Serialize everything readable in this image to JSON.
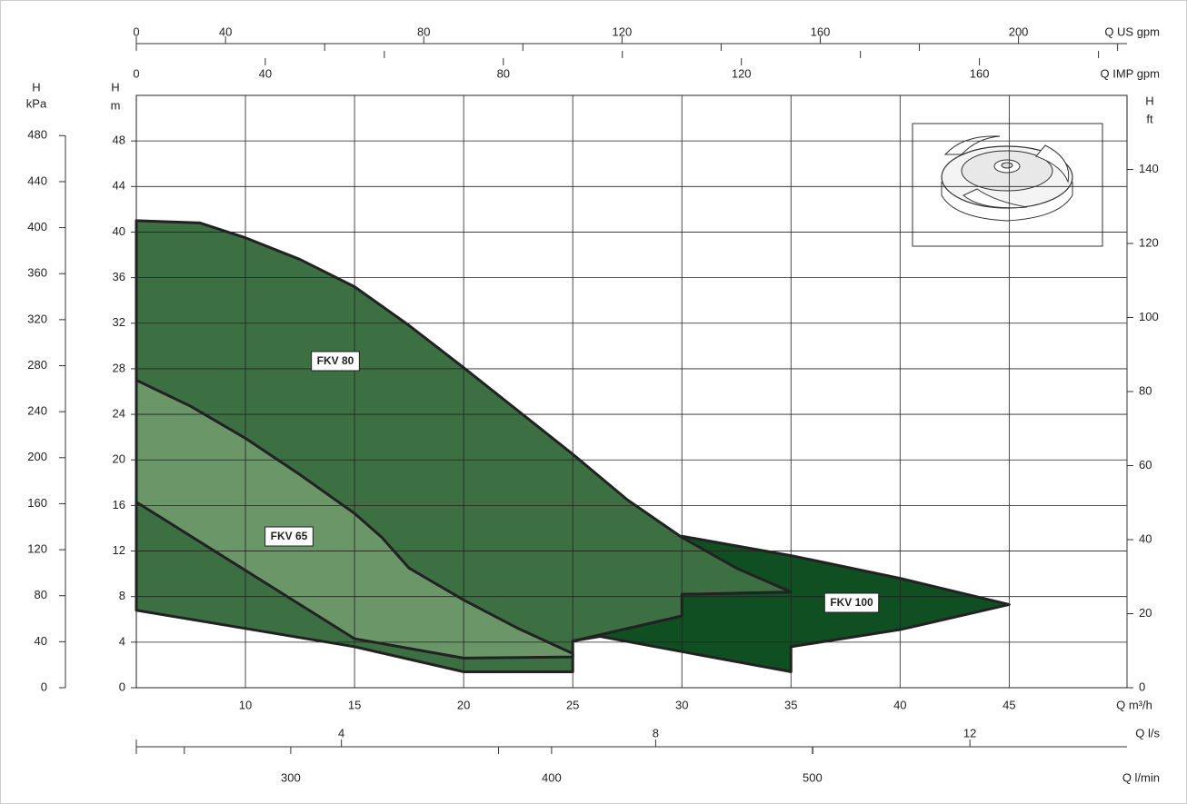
{
  "chart_data": {
    "type": "area",
    "xlabel": "Q m³/h",
    "xlim": [
      5,
      50.4
    ],
    "xticks": [
      10,
      15,
      20,
      25,
      30,
      35,
      40,
      45
    ],
    "ylabel": [
      "H",
      "m"
    ],
    "ylim": [
      0,
      52
    ],
    "yticks": [
      0,
      4,
      8,
      12,
      16,
      20,
      24,
      28,
      32,
      36,
      40,
      44,
      48
    ],
    "grid": true,
    "y_kpa": {
      "label": [
        "H",
        "kPa"
      ],
      "lim": [
        0,
        515
      ],
      "ticks": [
        0,
        40,
        80,
        120,
        160,
        200,
        240,
        280,
        320,
        360,
        400,
        440,
        480
      ]
    },
    "y_ft": {
      "label": [
        "H",
        "ft"
      ],
      "lim": [
        0,
        160
      ],
      "ticks": [
        0,
        20,
        40,
        60,
        80,
        100,
        120,
        140
      ]
    },
    "x_us_gpm": {
      "label": "Q US gpm",
      "start_label": "0",
      "lim": [
        22.0,
        221.9
      ],
      "ticks": [
        40,
        80,
        120,
        160,
        200
      ],
      "minor_ticks": [
        60,
        100,
        140,
        180,
        220
      ]
    },
    "x_imp_gpm": {
      "label": "Q IMP gpm",
      "start_label": "0",
      "lim": [
        18.33,
        184.8
      ],
      "ticks": [
        40,
        80,
        120,
        160
      ],
      "minor_ticks": [
        60,
        100,
        140,
        180
      ]
    },
    "x_ls": {
      "label": "Q l/s",
      "lim": [
        1.389,
        14.0
      ],
      "ticks": [
        4,
        8,
        12
      ],
      "minor_ticks": [
        2,
        6,
        10
      ]
    },
    "x_lmin": {
      "label": "Q l/min",
      "lim": [
        240.8,
        620.6
      ],
      "ticks": [
        300,
        400,
        500
      ]
    },
    "series": [
      {
        "name": "FKV 100",
        "color": "#0f4f22",
        "x": [
          30,
          35,
          40,
          45,
          40,
          35,
          35,
          26.25,
          25,
          30
        ],
        "y": [
          13.3,
          11.6,
          9.6,
          7.3,
          5.1,
          3.6,
          1.4,
          4.5,
          4.1,
          6.3
        ]
      },
      {
        "name": "FKV 80",
        "color": "#3c7042",
        "x": [
          5,
          7.92,
          10,
          12.5,
          15,
          17.5,
          20,
          22.5,
          25,
          27.5,
          30,
          32.5,
          35,
          30,
          30,
          25,
          25,
          20,
          15,
          10,
          5
        ],
        "y": [
          41.0,
          40.8,
          39.5,
          37.6,
          35.2,
          31.8,
          28.1,
          24.3,
          20.5,
          16.5,
          13.2,
          10.5,
          8.4,
          8.2,
          6.3,
          4.1,
          1.4,
          1.4,
          3.6,
          5.2,
          6.8
        ]
      },
      {
        "name": "FKV 65",
        "color": "#6b9668",
        "x": [
          5,
          7.5,
          10,
          12.5,
          15,
          16.25,
          17.5,
          20,
          22.5,
          25,
          25,
          20,
          15,
          5
        ],
        "y": [
          27.0,
          24.7,
          21.9,
          18.7,
          15.3,
          13.2,
          10.5,
          7.7,
          5.2,
          3.0,
          2.7,
          2.6,
          4.3,
          16.3
        ]
      }
    ]
  }
}
